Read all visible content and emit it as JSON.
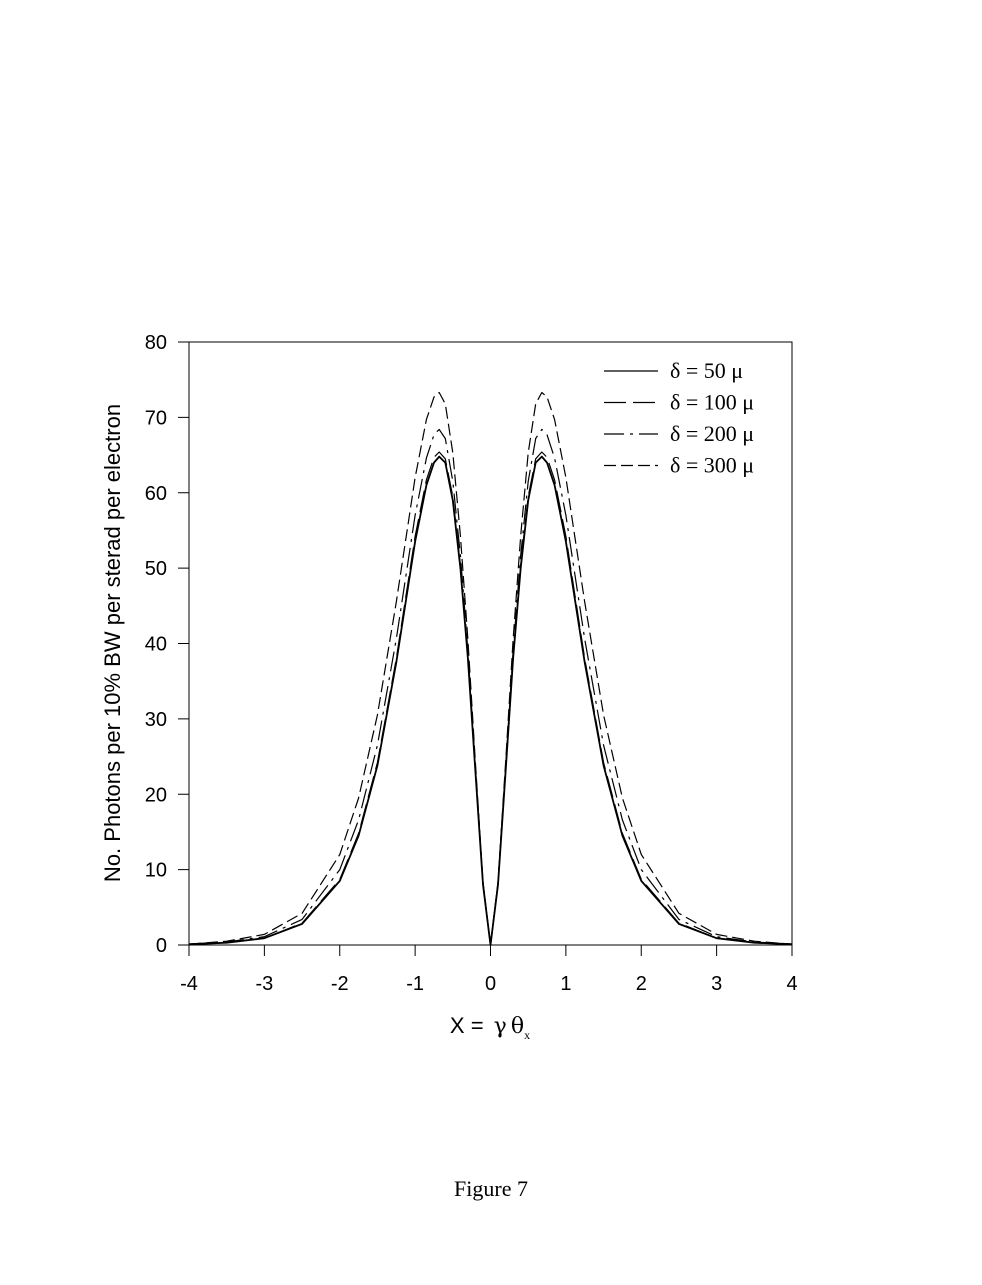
{
  "chart_data": {
    "type": "line",
    "xlabel_prefix": "X = ",
    "xlabel_gamma": "γ",
    "xlabel_theta": "θ",
    "xlabel_sub": "x",
    "ylabel": "No. Photons per 10% BW per sterad per electron",
    "xlim": [
      -4,
      4
    ],
    "ylim": [
      0,
      80
    ],
    "x_ticks": [
      "-4",
      "-3",
      "-2",
      "-1",
      "0",
      "1",
      "2",
      "3",
      "4"
    ],
    "y_ticks": [
      "0",
      "10",
      "20",
      "30",
      "40",
      "50",
      "60",
      "70",
      "80"
    ],
    "grid": false,
    "legend_position": "top-right",
    "series": [
      {
        "name": "δ = 50 μ",
        "dash": "solid",
        "x": [
          -4,
          -3.5,
          -3,
          -2.5,
          -2,
          -1.75,
          -1.5,
          -1.25,
          -1,
          -0.85,
          -0.75,
          -0.68,
          -0.6,
          -0.5,
          -0.4,
          -0.3,
          -0.2,
          -0.1,
          0,
          0.1,
          0.2,
          0.3,
          0.4,
          0.5,
          0.6,
          0.68,
          0.75,
          0.85,
          1,
          1.25,
          1.5,
          1.75,
          2,
          2.5,
          3,
          3.5,
          4
        ],
        "y": [
          0.1,
          0.3,
          0.9,
          2.8,
          8.5,
          14.5,
          23.8,
          37.5,
          53.5,
          61.0,
          64.0,
          64.8,
          64.0,
          59.0,
          50.0,
          38.0,
          23.0,
          8.0,
          0,
          8.0,
          23.0,
          38.0,
          50.0,
          59.0,
          64.0,
          64.8,
          64.0,
          61.0,
          53.5,
          37.5,
          23.8,
          14.5,
          8.5,
          2.8,
          0.9,
          0.3,
          0.1
        ]
      },
      {
        "name": "δ = 100 μ",
        "dash": "long",
        "x": [
          -4,
          -3.5,
          -3,
          -2.5,
          -2,
          -1.75,
          -1.5,
          -1.25,
          -1,
          -0.85,
          -0.75,
          -0.68,
          -0.6,
          -0.5,
          -0.4,
          -0.3,
          -0.2,
          -0.1,
          0,
          0.1,
          0.2,
          0.3,
          0.4,
          0.5,
          0.6,
          0.68,
          0.75,
          0.85,
          1,
          1.25,
          1.5,
          1.75,
          2,
          2.5,
          3,
          3.5,
          4
        ],
        "y": [
          0.1,
          0.3,
          0.9,
          2.9,
          8.7,
          14.8,
          24.2,
          38.0,
          54.2,
          61.7,
          64.7,
          65.4,
          64.5,
          59.5,
          50.4,
          38.3,
          23.2,
          8.1,
          0,
          8.1,
          23.2,
          38.3,
          50.4,
          59.5,
          64.5,
          65.4,
          64.7,
          61.7,
          54.2,
          38.0,
          24.2,
          14.8,
          8.7,
          2.9,
          0.9,
          0.3,
          0.1
        ]
      },
      {
        "name": "δ = 200 μ",
        "dash": "dashdot",
        "x": [
          -4,
          -3.5,
          -3,
          -2.5,
          -2,
          -1.75,
          -1.5,
          -1.25,
          -1,
          -0.85,
          -0.75,
          -0.68,
          -0.6,
          -0.5,
          -0.4,
          -0.3,
          -0.2,
          -0.1,
          0,
          0.1,
          0.2,
          0.3,
          0.4,
          0.5,
          0.6,
          0.68,
          0.75,
          0.85,
          1,
          1.25,
          1.5,
          1.75,
          2,
          2.5,
          3,
          3.5,
          4
        ],
        "y": [
          0.1,
          0.4,
          1.1,
          3.4,
          10.0,
          16.6,
          26.5,
          40.6,
          57.0,
          64.6,
          67.7,
          68.4,
          67.2,
          61.5,
          51.7,
          39.0,
          23.5,
          8.2,
          0,
          8.2,
          23.5,
          39.0,
          51.7,
          61.5,
          67.2,
          68.4,
          67.7,
          64.6,
          57.0,
          40.6,
          26.5,
          16.6,
          10.0,
          3.4,
          1.1,
          0.4,
          0.1
        ]
      },
      {
        "name": "δ = 300 μ",
        "dash": "medium",
        "x": [
          -4,
          -3.5,
          -3,
          -2.5,
          -2,
          -1.75,
          -1.5,
          -1.25,
          -1,
          -0.85,
          -0.75,
          -0.68,
          -0.6,
          -0.5,
          -0.4,
          -0.3,
          -0.2,
          -0.1,
          0,
          0.1,
          0.2,
          0.3,
          0.4,
          0.5,
          0.6,
          0.68,
          0.75,
          0.85,
          1,
          1.25,
          1.5,
          1.75,
          2,
          2.5,
          3,
          3.5,
          4
        ],
        "y": [
          0.1,
          0.5,
          1.4,
          4.2,
          12.0,
          19.5,
          30.5,
          45.5,
          62.0,
          69.7,
          72.7,
          73.3,
          71.8,
          65.3,
          54.3,
          40.5,
          24.2,
          8.4,
          0,
          8.4,
          24.2,
          40.5,
          54.3,
          65.3,
          71.8,
          73.3,
          72.7,
          69.7,
          62.0,
          45.5,
          30.5,
          19.5,
          12.0,
          4.2,
          1.4,
          0.5,
          0.1
        ]
      }
    ]
  },
  "caption": "Figure 7"
}
